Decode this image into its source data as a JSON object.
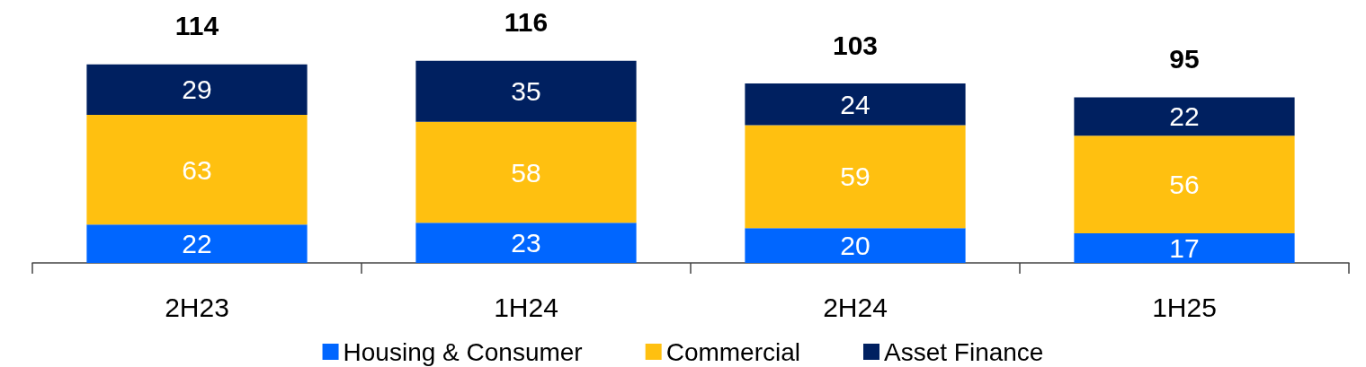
{
  "chart_data": {
    "type": "bar",
    "stacked": true,
    "categories": [
      "2H23",
      "1H24",
      "2H24",
      "1H25"
    ],
    "series": [
      {
        "name": "Housing & Consumer",
        "color": "#0066ff",
        "values": [
          22,
          23,
          20,
          17
        ]
      },
      {
        "name": "Commercial",
        "color": "#ffc010",
        "values": [
          63,
          58,
          59,
          56
        ]
      },
      {
        "name": "Asset Finance",
        "color": "#002060",
        "values": [
          29,
          35,
          24,
          22
        ]
      }
    ],
    "data_labels": true,
    "totals": [
      "114",
      "116",
      "103",
      "95"
    ],
    "legend": "bottom"
  }
}
